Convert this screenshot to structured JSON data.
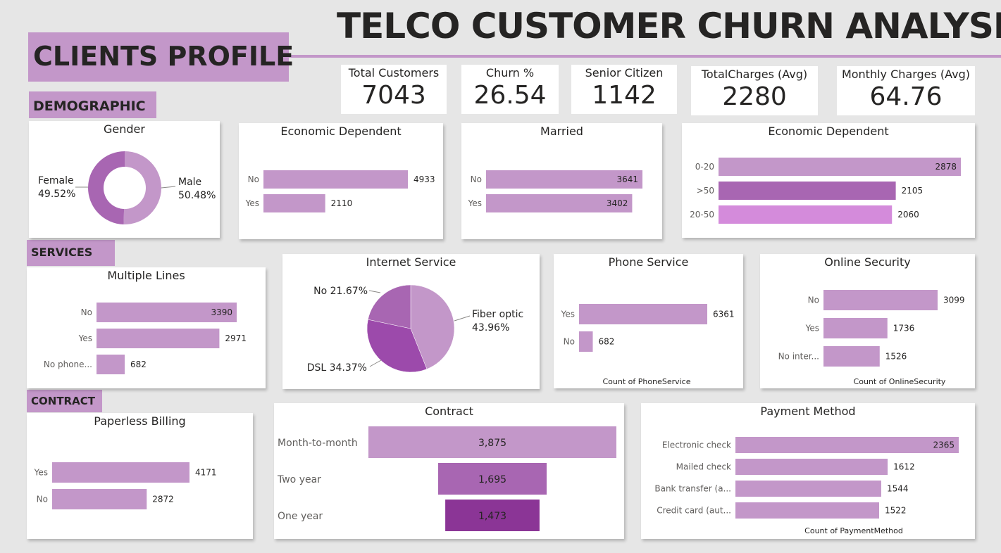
{
  "header": {
    "title": "TELCO CUSTOMER CHURN ANALYSIS",
    "profile_title": "CLIENTS PROFILE"
  },
  "sections": {
    "demographic": "DEMOGRAPHIC",
    "services": "SERVICES",
    "contract": "CONTRACT"
  },
  "kpis": [
    {
      "label": "Total Customers",
      "value": "7043"
    },
    {
      "label": "Churn %",
      "value": "26.54"
    },
    {
      "label": "Senior Citizen",
      "value": "1142"
    },
    {
      "label": "TotalCharges (Avg)",
      "value": "2280"
    },
    {
      "label": "Monthly Charges (Avg)",
      "value": "64.76"
    }
  ],
  "colors": {
    "accent": "#c397c9",
    "mid": "#a866b2",
    "dark": "#8b3596",
    "bright": "#d48bdb",
    "pie_dsl": "#9c4aab",
    "background": "#e6e6e6"
  },
  "chart_data": [
    {
      "id": "gender",
      "type": "donut",
      "title": "Gender",
      "categories": [
        "Female",
        "Male"
      ],
      "values": [
        49.52,
        50.48
      ],
      "data_labels": [
        "Female 49.52%",
        "Male 50.48%"
      ]
    },
    {
      "id": "dependents",
      "type": "bar",
      "orientation": "horizontal",
      "title": "Economic Dependent",
      "categories": [
        "No",
        "Yes"
      ],
      "values": [
        4933,
        2110
      ]
    },
    {
      "id": "married",
      "type": "bar",
      "orientation": "horizontal",
      "title": "Married",
      "categories": [
        "No",
        "Yes"
      ],
      "values": [
        3641,
        3402
      ]
    },
    {
      "id": "age_groups",
      "type": "bar",
      "orientation": "horizontal",
      "title": "Economic Dependent",
      "categories": [
        "0-20",
        ">50",
        "20-50"
      ],
      "values": [
        2878,
        2105,
        2060
      ]
    },
    {
      "id": "multiple_lines",
      "type": "bar",
      "orientation": "horizontal",
      "title": "Multiple Lines",
      "categories": [
        "No",
        "Yes",
        "No phone..."
      ],
      "values": [
        3390,
        2971,
        682
      ]
    },
    {
      "id": "internet_service",
      "type": "pie",
      "title": "Internet Service",
      "categories": [
        "Fiber optic",
        "DSL",
        "No"
      ],
      "values": [
        43.96,
        34.37,
        21.67
      ],
      "data_labels": [
        "Fiber optic 43.96%",
        "DSL 34.37%",
        "No 21.67%"
      ]
    },
    {
      "id": "phone_service",
      "type": "bar",
      "orientation": "horizontal",
      "title": "Phone Service",
      "xlabel": "Count of PhoneService",
      "categories": [
        "Yes",
        "No"
      ],
      "values": [
        6361,
        682
      ]
    },
    {
      "id": "online_security",
      "type": "bar",
      "orientation": "horizontal",
      "title": "Online Security",
      "xlabel": "Count of OnlineSecurity",
      "categories": [
        "No",
        "Yes",
        "No inter..."
      ],
      "values": [
        3099,
        1736,
        1526
      ]
    },
    {
      "id": "paperless_billing",
      "type": "bar",
      "orientation": "horizontal",
      "title": "Paperless Billing",
      "categories": [
        "Yes",
        "No"
      ],
      "values": [
        4171,
        2872
      ]
    },
    {
      "id": "contract",
      "type": "funnel",
      "title": "Contract",
      "categories": [
        "Month-to-month",
        "Two year",
        "One year"
      ],
      "values": [
        3875,
        1695,
        1473
      ],
      "value_labels": [
        "3,875",
        "1,695",
        "1,473"
      ]
    },
    {
      "id": "payment_method",
      "type": "bar",
      "orientation": "horizontal",
      "title": "Payment Method",
      "xlabel": "Count of PaymentMethod",
      "categories": [
        "Electronic check",
        "Mailed check",
        "Bank transfer (a...",
        "Credit card (aut..."
      ],
      "values": [
        2365,
        1612,
        1544,
        1522
      ]
    }
  ]
}
